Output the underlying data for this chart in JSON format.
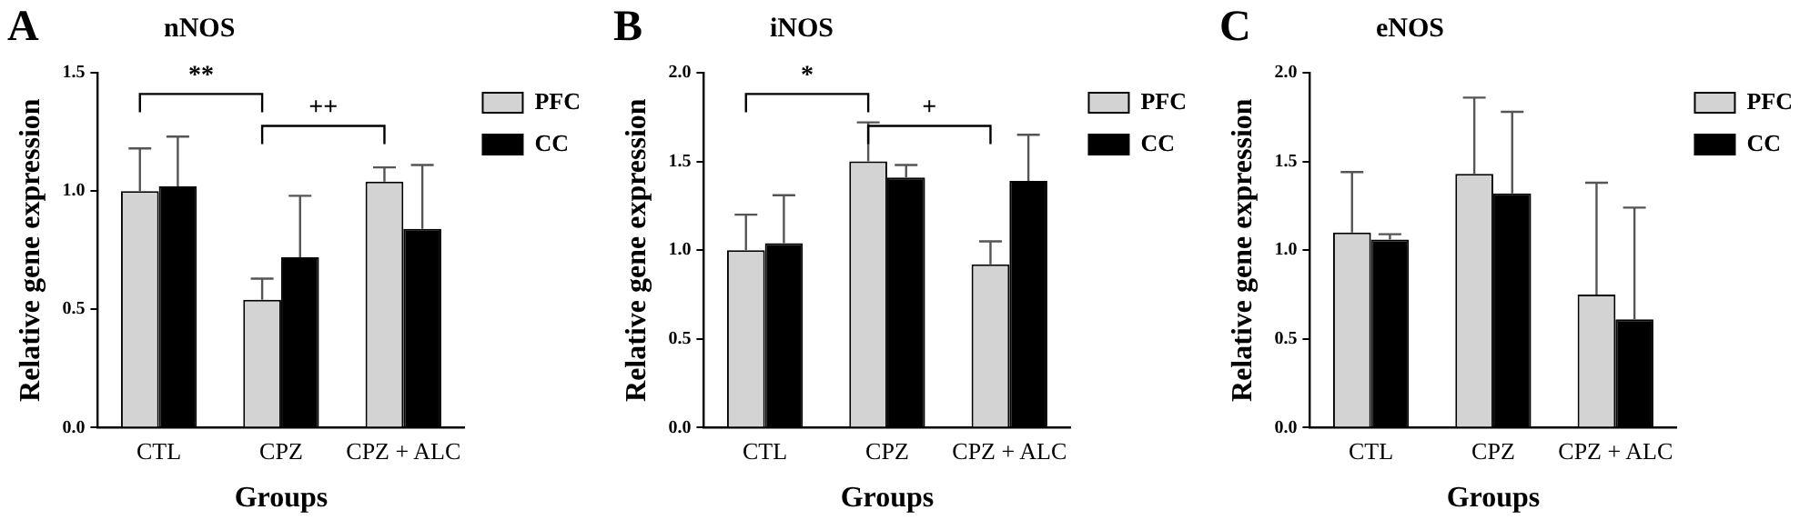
{
  "chart_data": [
    {
      "type": "bar",
      "title": "A",
      "subtitle": "nNOS",
      "xlabel": "Groups",
      "ylabel": "Relative gene expression",
      "categories": [
        "CTL",
        "CPZ",
        "CPZ + ALC"
      ],
      "series": [
        {
          "name": "PFC",
          "color": "#d3d3d3",
          "values": [
            1.0,
            0.54,
            1.04
          ],
          "errors": [
            [
              1.0,
              1.18
            ],
            [
              0.54,
              0.63
            ],
            [
              1.04,
              1.1
            ]
          ]
        },
        {
          "name": "CC",
          "color": "#000000",
          "values": [
            1.02,
            0.72,
            0.84
          ],
          "errors": [
            [
              1.02,
              1.23
            ],
            [
              0.72,
              0.98
            ],
            [
              0.84,
              1.11
            ]
          ]
        }
      ],
      "ylim": [
        0,
        1.5
      ],
      "yticks": [
        {
          "value": 0,
          "label": "0.0"
        },
        {
          "value": 0.5,
          "label": "0.5"
        },
        {
          "value": 1,
          "label": "1.0"
        },
        {
          "value": 1.5,
          "label": "1.5"
        }
      ],
      "legend": "top right",
      "grid": false,
      "annotations": [
        "**",
        "++"
      ]
    },
    {
      "type": "bar",
      "title": "B",
      "subtitle": "iNOS",
      "xlabel": "Groups",
      "ylabel": "Relative gene expression",
      "categories": [
        "CTL",
        "CPZ",
        "CPZ + ALC"
      ],
      "series": [
        {
          "name": "PFC",
          "color": "#d3d3d3",
          "values": [
            1.0,
            1.5,
            0.92
          ],
          "errors": [
            [
              1.0,
              1.2
            ],
            [
              1.5,
              1.72
            ],
            [
              0.92,
              1.05
            ]
          ]
        },
        {
          "name": "CC",
          "color": "#000000",
          "values": [
            1.04,
            1.41,
            1.39
          ],
          "errors": [
            [
              1.04,
              1.31
            ],
            [
              1.41,
              1.48
            ],
            [
              1.39,
              1.65
            ]
          ]
        }
      ],
      "ylim": [
        0,
        2
      ],
      "yticks": [
        {
          "value": 0,
          "label": "0.0"
        },
        {
          "value": 0.5,
          "label": "0.5"
        },
        {
          "value": 1,
          "label": "1.0"
        },
        {
          "value": 1.5,
          "label": "1.5"
        },
        {
          "value": 2,
          "label": "2.0"
        }
      ],
      "legend": "top right",
      "grid": false,
      "annotations": [
        "*",
        "+"
      ]
    },
    {
      "type": "bar",
      "title": "C",
      "subtitle": "eNOS",
      "xlabel": "Groups",
      "ylabel": "Relative gene expression",
      "categories": [
        "CTL",
        "CPZ",
        "CPZ + ALC"
      ],
      "series": [
        {
          "name": "PFC",
          "color": "#d3d3d3",
          "values": [
            1.1,
            1.43,
            0.75
          ],
          "errors": [
            [
              1.1,
              1.44
            ],
            [
              1.43,
              1.86
            ],
            [
              0.75,
              1.38
            ]
          ]
        },
        {
          "name": "CC",
          "color": "#000000",
          "values": [
            1.06,
            1.32,
            0.61
          ],
          "errors": [
            [
              1.06,
              1.09
            ],
            [
              1.32,
              1.78
            ],
            [
              0.61,
              1.24
            ]
          ]
        }
      ],
      "ylim": [
        0,
        2
      ],
      "yticks": [
        {
          "value": 0,
          "label": "0.0"
        },
        {
          "value": 0.5,
          "label": "0.5"
        },
        {
          "value": 1,
          "label": "1.0"
        },
        {
          "value": 1.5,
          "label": "1.5"
        },
        {
          "value": 2,
          "label": "2.0"
        }
      ],
      "legend": "top right",
      "grid": false
    }
  ]
}
